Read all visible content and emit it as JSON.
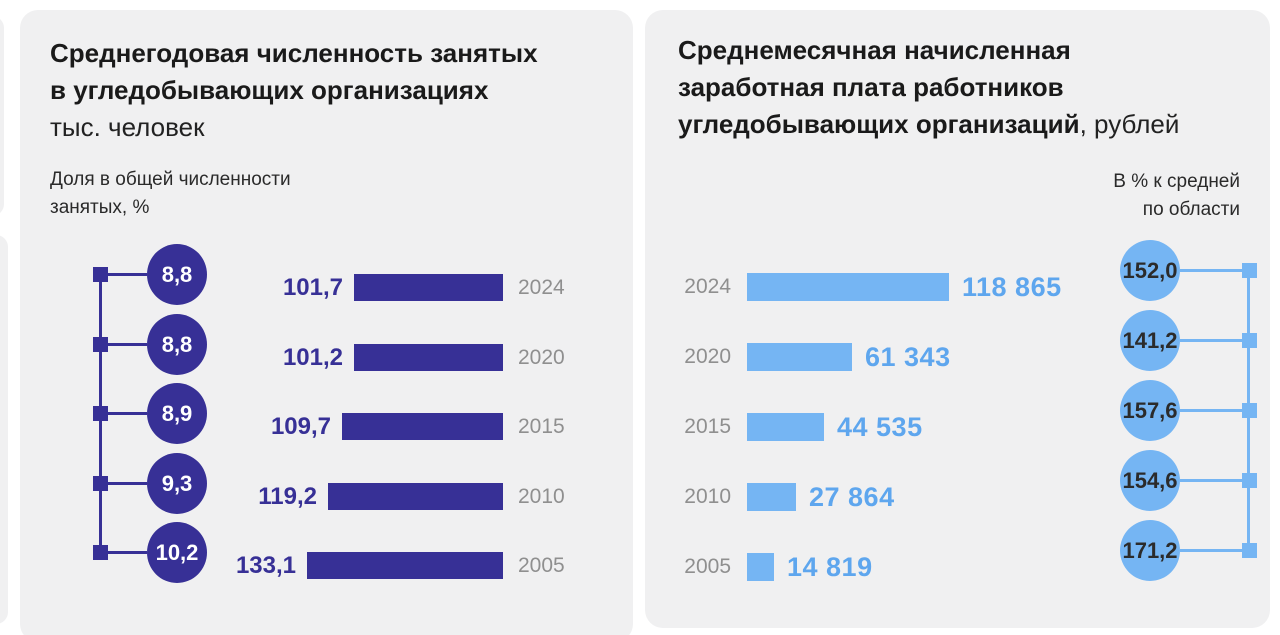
{
  "left_panel": {
    "title_line1": "Среднегодовая численность занятых",
    "title_line2": "в угледобывающих организациях",
    "unit": "тыс. человек",
    "note_line1": "Доля в общей численности",
    "note_line2": "занятых, %",
    "accent_color": "#373096",
    "rows": [
      {
        "year": "2024",
        "value": 101.7,
        "value_label": "101,7",
        "share_label": "8,8"
      },
      {
        "year": "2020",
        "value": 101.2,
        "value_label": "101,2",
        "share_label": "8,8"
      },
      {
        "year": "2015",
        "value": 109.7,
        "value_label": "109,7",
        "share_label": "8,9"
      },
      {
        "year": "2010",
        "value": 119.2,
        "value_label": "119,2",
        "share_label": "9,3"
      },
      {
        "year": "2005",
        "value": 133.1,
        "value_label": "133,1",
        "share_label": "10,2"
      }
    ]
  },
  "right_panel": {
    "title_line1": "Среднемесячная начисленная",
    "title_line2": "заработная плата работников",
    "title_line3_bold": "угледобывающих организаций",
    "title_line3_suffix": ", рублей",
    "note_line1": "В % к средней",
    "note_line2": "по области",
    "accent_color": "#75b5f3",
    "value_text_color": "#5ea6ee",
    "rows": [
      {
        "year": "2024",
        "value": 118865,
        "value_label": "118 865",
        "percent_label": "152,0"
      },
      {
        "year": "2020",
        "value": 61343,
        "value_label": "61 343",
        "percent_label": "141,2"
      },
      {
        "year": "2015",
        "value": 44535,
        "value_label": "44 535",
        "percent_label": "157,6"
      },
      {
        "year": "2010",
        "value": 27864,
        "value_label": "27 864",
        "percent_label": "154,6"
      },
      {
        "year": "2005",
        "value": 14819,
        "value_label": "14 819",
        "percent_label": "171,2"
      }
    ]
  },
  "chart_data": [
    {
      "type": "bar",
      "orientation": "horizontal",
      "title": "Среднегодовая численность занятых в угледобывающих организациях",
      "unit": "тыс. человек",
      "categories": [
        "2024",
        "2020",
        "2015",
        "2010",
        "2005"
      ],
      "series": [
        {
          "name": "Среднегодовая численность занятых, тыс. человек",
          "values": [
            101.7,
            101.2,
            109.7,
            119.2,
            133.1
          ]
        },
        {
          "name": "Доля в общей численности занятых, %",
          "values": [
            8.8,
            8.8,
            8.9,
            9.3,
            10.2
          ]
        }
      ],
      "legend_position": "none",
      "grid": false
    },
    {
      "type": "bar",
      "orientation": "horizontal",
      "title": "Среднемесячная начисленная заработная плата работников угледобывающих организаций, рублей",
      "unit": "рублей",
      "categories": [
        "2024",
        "2020",
        "2015",
        "2010",
        "2005"
      ],
      "series": [
        {
          "name": "Среднемесячная начисленная заработная плата, рублей",
          "values": [
            118865,
            61343,
            44535,
            27864,
            14819
          ]
        },
        {
          "name": "В % к средней по области",
          "values": [
            152.0,
            141.2,
            157.6,
            154.6,
            171.2
          ]
        }
      ],
      "legend_position": "none",
      "grid": false
    }
  ]
}
